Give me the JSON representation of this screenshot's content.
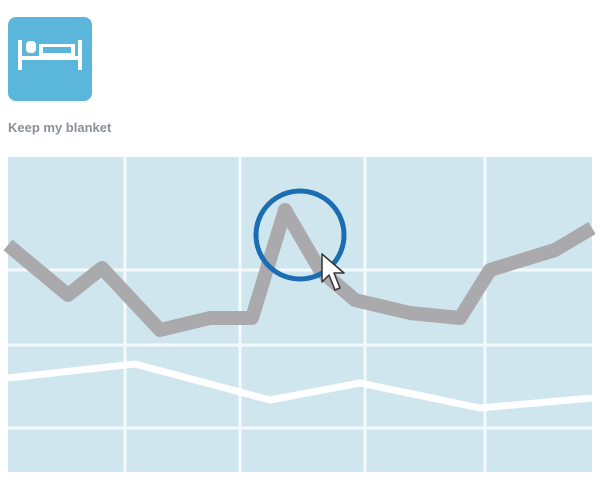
{
  "card": {
    "label": "Keep my blanket"
  }
}
